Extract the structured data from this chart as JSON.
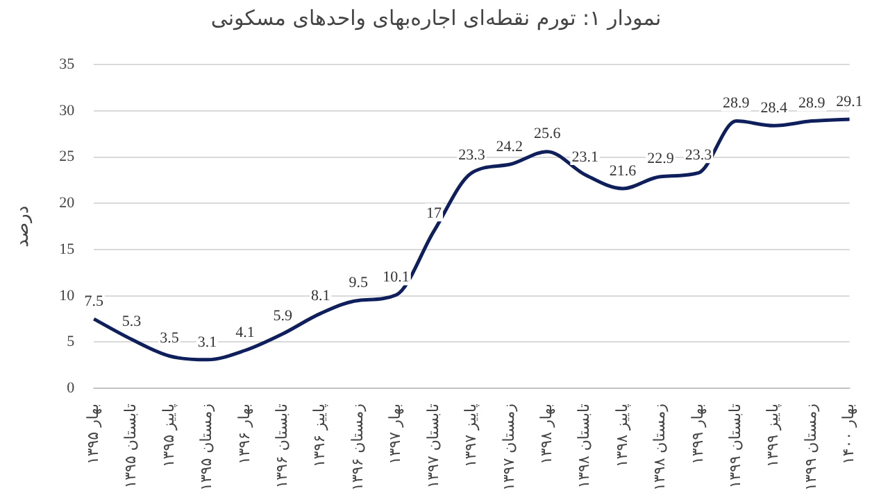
{
  "chart_data": {
    "type": "line",
    "title": "نمودار ۱: تورم نقطه‌ای اجاره‌بهای واحدهای مسکونی",
    "ylabel": "درصد",
    "categories": [
      "بهار ۱۳۹۵",
      "تابستان ۱۳۹۵",
      "پاییز ۱۳۹۵",
      "زمستان ۱۳۹۵",
      "بهار ۱۳۹۶",
      "تابستان ۱۳۹۶",
      "پاییز ۱۳۹۶",
      "زمستان ۱۳۹۶",
      "بهار ۱۳۹۷",
      "تابستان ۱۳۹۷",
      "پاییز ۱۳۹۷",
      "زمستان ۱۳۹۷",
      "بهار ۱۳۹۸",
      "تابستان ۱۳۹۸",
      "پاییز ۱۳۹۸",
      "زمستان ۱۳۹۸",
      "بهار ۱۳۹۹",
      "تابستان ۱۳۹۹",
      "پاییز ۱۳۹۹",
      "زمستان ۱۳۹۹",
      "بهار ۱۴۰۰"
    ],
    "values": [
      7.5,
      5.3,
      3.5,
      3.1,
      4.1,
      5.9,
      8.1,
      9.5,
      10.1,
      17,
      23.3,
      24.2,
      25.6,
      23.1,
      21.6,
      22.9,
      23.3,
      28.9,
      28.4,
      28.9,
      29.1
    ],
    "color": "#0f1f5c",
    "ylim": [
      0,
      35
    ],
    "yticks": [
      0,
      5,
      10,
      15,
      20,
      25,
      30,
      35
    ],
    "grid": "y",
    "data_labels": true,
    "marker": "none",
    "line_style": "solid",
    "legend": false
  }
}
